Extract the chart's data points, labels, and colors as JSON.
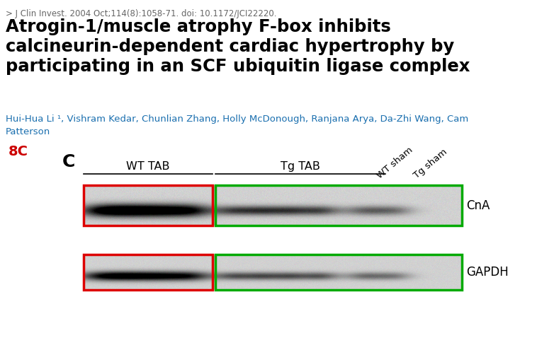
{
  "bg_color": "#ffffff",
  "journal_line": "> J Clin Invest. 2004 Oct;114(8):1058-71. doi: 10.1172/JCI22220.",
  "title_line1": "Atrogin-1/muscle atrophy F-box inhibits",
  "title_line2": "calcineurin-dependent cardiac hypertrophy by",
  "title_line3": "participating in an SCF ubiquitin ligase complex",
  "authors_line1": "Hui-Hua Li ¹, Vishram Kedar, Chunlian Zhang, Holly McDonough, Ranjana Arya, Da-Zhi Wang, Cam",
  "authors_line2": "Patterson",
  "label_8C": "8C",
  "label_C": "C",
  "label_WT_TAB": "WT TAB",
  "label_Tg_TAB": "Tg TAB",
  "label_WT_sham": "WT sham",
  "label_Tg_sham": "Tg sham",
  "label_CnA": "CnA",
  "label_GAPDH": "GAPDH",
  "journal_color": "#666666",
  "title_color": "#000000",
  "authors_color": "#1a6faf",
  "label_8C_color": "#cc0000",
  "label_C_color": "#000000",
  "label_col_color": "#000000",
  "red_box_color": "#dd0000",
  "green_box_color": "#00aa00",
  "blot_bg_color": "#c8c8c8",
  "band_color_dark": "#1a1a1a",
  "band_color_light": "#3a3a3a",
  "fig_width": 7.82,
  "fig_height": 4.88,
  "dpi": 100,
  "journal_fontsize": 8.5,
  "title_fontsize": 17.5,
  "authors_fontsize": 9.5,
  "col_label_fontsize": 11.5,
  "blot_label_fontsize": 12,
  "label_8C_fontsize": 14,
  "label_C_fontsize": 18
}
